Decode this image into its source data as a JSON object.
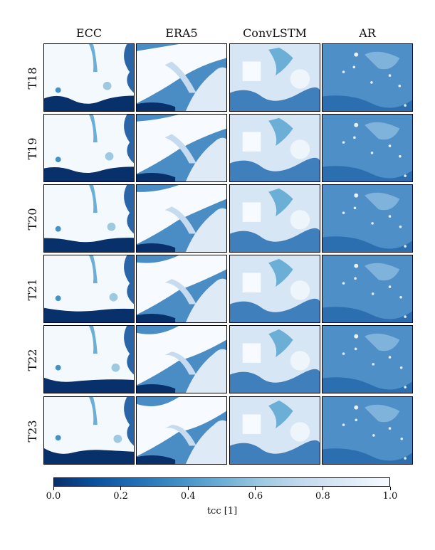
{
  "columns": [
    "ECC",
    "ERA5",
    "ConvLSTM",
    "AR"
  ],
  "rows": [
    "T18",
    "T19",
    "T20",
    "T21",
    "T22",
    "T23"
  ],
  "colorbar": {
    "label": "tcc [1]",
    "ticks": [
      "0.0",
      "0.2",
      "0.4",
      "0.6",
      "0.8",
      "1.0"
    ],
    "range": [
      0.0,
      1.0
    ],
    "colormap": "Blues_r",
    "colors": [
      "#08306b",
      "#08519c",
      "#2171b5",
      "#4292c6",
      "#6baed6",
      "#9ecae1",
      "#c6dbef",
      "#deebf7",
      "#f7fbff"
    ]
  }
}
